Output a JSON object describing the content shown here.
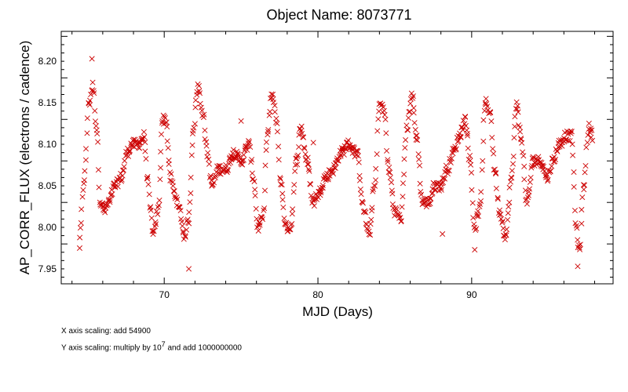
{
  "chart_data": {
    "type": "scatter",
    "title": "Object Name:  8073771",
    "xlabel": "MJD (Days)",
    "ylabel": "AP_CORR_FLUX (electrons / cadence)",
    "xlim": [
      63.3,
      99.2
    ],
    "ylim": [
      7.932,
      8.236
    ],
    "x_ticks": [
      70,
      80,
      90
    ],
    "y_ticks": [
      "7.95",
      "8.00",
      "8.05",
      "8.10",
      "8.15",
      "8.20"
    ],
    "grid": false,
    "legend": "none",
    "marker": "x",
    "color": "#cc0000",
    "x_scaling_note": "X axis  scaling:  add  54900",
    "y_scaling_prefix": "Y axis  scaling:  multiply  by  10",
    "y_scaling_exp": "7",
    "y_scaling_suffix": " and  add  1000000000",
    "anchors": [
      [
        64.5,
        7.99
      ],
      [
        64.8,
        8.06
      ],
      [
        65.1,
        8.15
      ],
      [
        65.35,
        8.17
      ],
      [
        65.6,
        8.12
      ],
      [
        65.85,
        8.03
      ],
      [
        66.1,
        8.02
      ],
      [
        66.4,
        8.03
      ],
      [
        66.8,
        8.05
      ],
      [
        67.2,
        8.06
      ],
      [
        67.6,
        8.09
      ],
      [
        67.9,
        8.1
      ],
      [
        68.3,
        8.1
      ],
      [
        68.7,
        8.11
      ],
      [
        68.9,
        8.06
      ],
      [
        69.1,
        8.02
      ],
      [
        69.3,
        7.99
      ],
      [
        69.6,
        8.02
      ],
      [
        69.9,
        8.13
      ],
      [
        70.1,
        8.13
      ],
      [
        70.4,
        8.06
      ],
      [
        70.7,
        8.04
      ],
      [
        71.0,
        8.02
      ],
      [
        71.3,
        7.99
      ],
      [
        71.6,
        8.01
      ],
      [
        71.9,
        8.12
      ],
      [
        72.2,
        8.17
      ],
      [
        72.5,
        8.14
      ],
      [
        72.8,
        8.09
      ],
      [
        73.1,
        8.05
      ],
      [
        73.5,
        8.07
      ],
      [
        74.0,
        8.07
      ],
      [
        74.5,
        8.09
      ],
      [
        75.0,
        8.08
      ],
      [
        75.5,
        8.1
      ],
      [
        75.8,
        8.06
      ],
      [
        76.1,
        8.0
      ],
      [
        76.4,
        8.01
      ],
      [
        76.7,
        8.11
      ],
      [
        77.0,
        8.16
      ],
      [
        77.3,
        8.13
      ],
      [
        77.6,
        8.05
      ],
      [
        77.9,
        8.0
      ],
      [
        78.2,
        8.0
      ],
      [
        78.6,
        8.08
      ],
      [
        78.9,
        8.12
      ],
      [
        79.3,
        8.08
      ],
      [
        79.7,
        8.03
      ],
      [
        80.0,
        8.04
      ],
      [
        80.5,
        8.06
      ],
      [
        81.0,
        8.07
      ],
      [
        81.5,
        8.09
      ],
      [
        82.0,
        8.1
      ],
      [
        82.5,
        8.09
      ],
      [
        83.0,
        8.02
      ],
      [
        83.3,
        7.99
      ],
      [
        83.7,
        8.05
      ],
      [
        84.0,
        8.15
      ],
      [
        84.3,
        8.14
      ],
      [
        84.6,
        8.07
      ],
      [
        85.0,
        8.02
      ],
      [
        85.4,
        8.01
      ],
      [
        85.8,
        8.12
      ],
      [
        86.1,
        8.16
      ],
      [
        86.4,
        8.11
      ],
      [
        86.8,
        8.03
      ],
      [
        87.2,
        8.03
      ],
      [
        87.6,
        8.05
      ],
      [
        88.0,
        8.05
      ],
      [
        88.4,
        8.07
      ],
      [
        88.8,
        8.09
      ],
      [
        89.2,
        8.11
      ],
      [
        89.6,
        8.13
      ],
      [
        89.9,
        8.08
      ],
      [
        90.2,
        8.0
      ],
      [
        90.5,
        8.02
      ],
      [
        90.9,
        8.15
      ],
      [
        91.2,
        8.14
      ],
      [
        91.5,
        8.07
      ],
      [
        91.8,
        8.02
      ],
      [
        92.2,
        7.99
      ],
      [
        92.6,
        8.06
      ],
      [
        92.9,
        8.15
      ],
      [
        93.2,
        8.11
      ],
      [
        93.6,
        8.03
      ],
      [
        94.0,
        8.08
      ],
      [
        94.5,
        8.08
      ],
      [
        94.9,
        8.06
      ],
      [
        95.3,
        8.08
      ],
      [
        95.7,
        8.1
      ],
      [
        96.1,
        8.11
      ],
      [
        96.5,
        8.11
      ],
      [
        96.8,
        8.0
      ],
      [
        97.0,
        7.97
      ],
      [
        97.3,
        8.05
      ],
      [
        97.6,
        8.12
      ],
      [
        97.9,
        8.11
      ]
    ]
  }
}
